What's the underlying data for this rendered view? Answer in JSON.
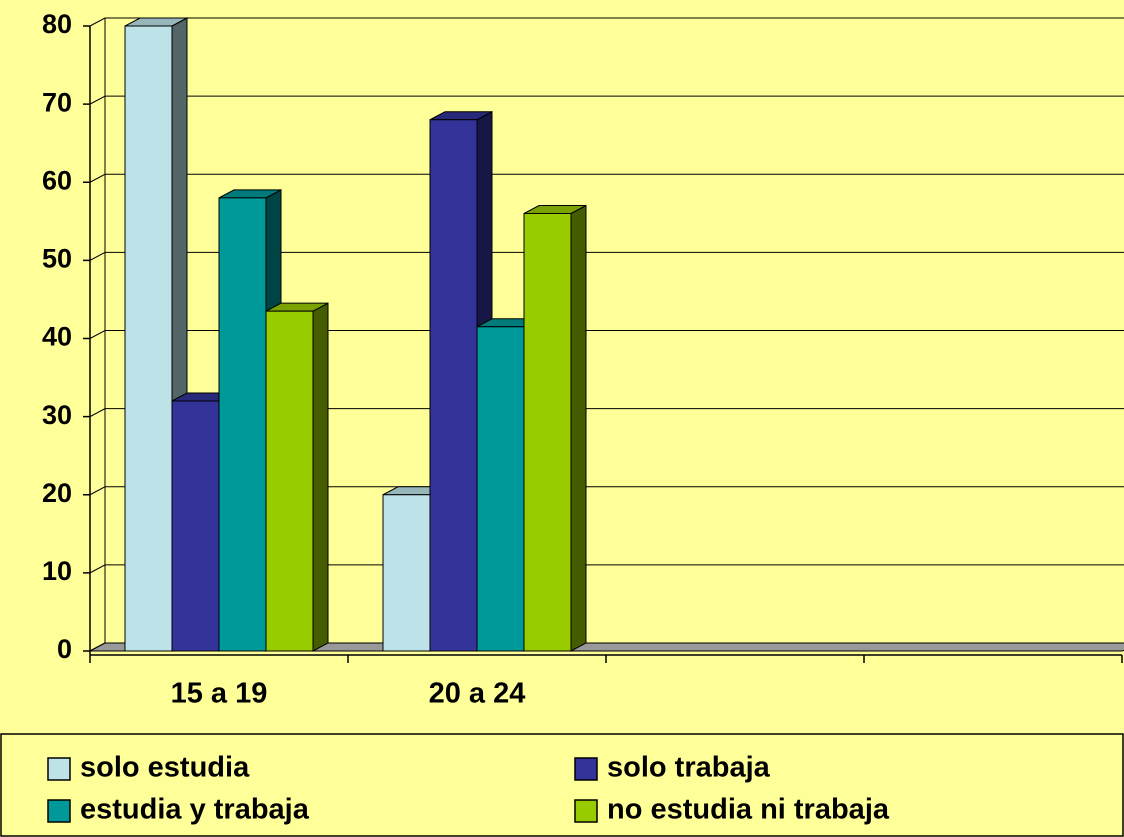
{
  "chart_data": {
    "type": "bar",
    "categories": [
      "15 a 19",
      "20 a 24",
      null,
      null
    ],
    "series": [
      {
        "name": "solo estudia",
        "color": "#bde3e8",
        "values": [
          80,
          20,
          null,
          null
        ]
      },
      {
        "name": "solo trabaja",
        "color": "#333399",
        "values": [
          32,
          68,
          null,
          null
        ]
      },
      {
        "name": "estudia y trabaja",
        "color": "#009999",
        "values": [
          58,
          41.5,
          null,
          null
        ]
      },
      {
        "name": "no estudia ni trabaja",
        "color": "#99cc00",
        "values": [
          43.5,
          56,
          null,
          null
        ]
      }
    ],
    "ylim": [
      0,
      80
    ],
    "yticks": [
      0,
      10,
      20,
      30,
      40,
      50,
      60,
      70,
      80
    ],
    "grid": true,
    "legend": "bottom"
  }
}
